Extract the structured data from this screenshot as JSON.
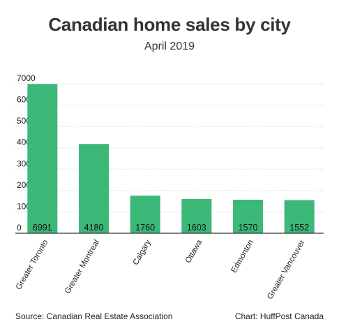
{
  "chart_data": {
    "type": "bar",
    "title": "Canadian home sales by city",
    "subtitle": "April 2019",
    "categories": [
      "Greater Toronto",
      "Greater Montreal",
      "Calgary",
      "Ottawa",
      "Edmonton",
      "Greater Vancouver"
    ],
    "values": [
      6991,
      4180,
      1760,
      1603,
      1570,
      1552
    ],
    "xlabel": "",
    "ylabel": "",
    "ylim": [
      0,
      7000
    ],
    "yticks": [
      "0",
      "1000",
      "2000",
      "3000",
      "4000",
      "5000",
      "6000",
      "7000"
    ],
    "grid": true,
    "bar_color": "#3cb878"
  },
  "footer": {
    "source": "Source: Canadian Real Estate Association",
    "credit": "Chart: HuffPost Canada"
  }
}
